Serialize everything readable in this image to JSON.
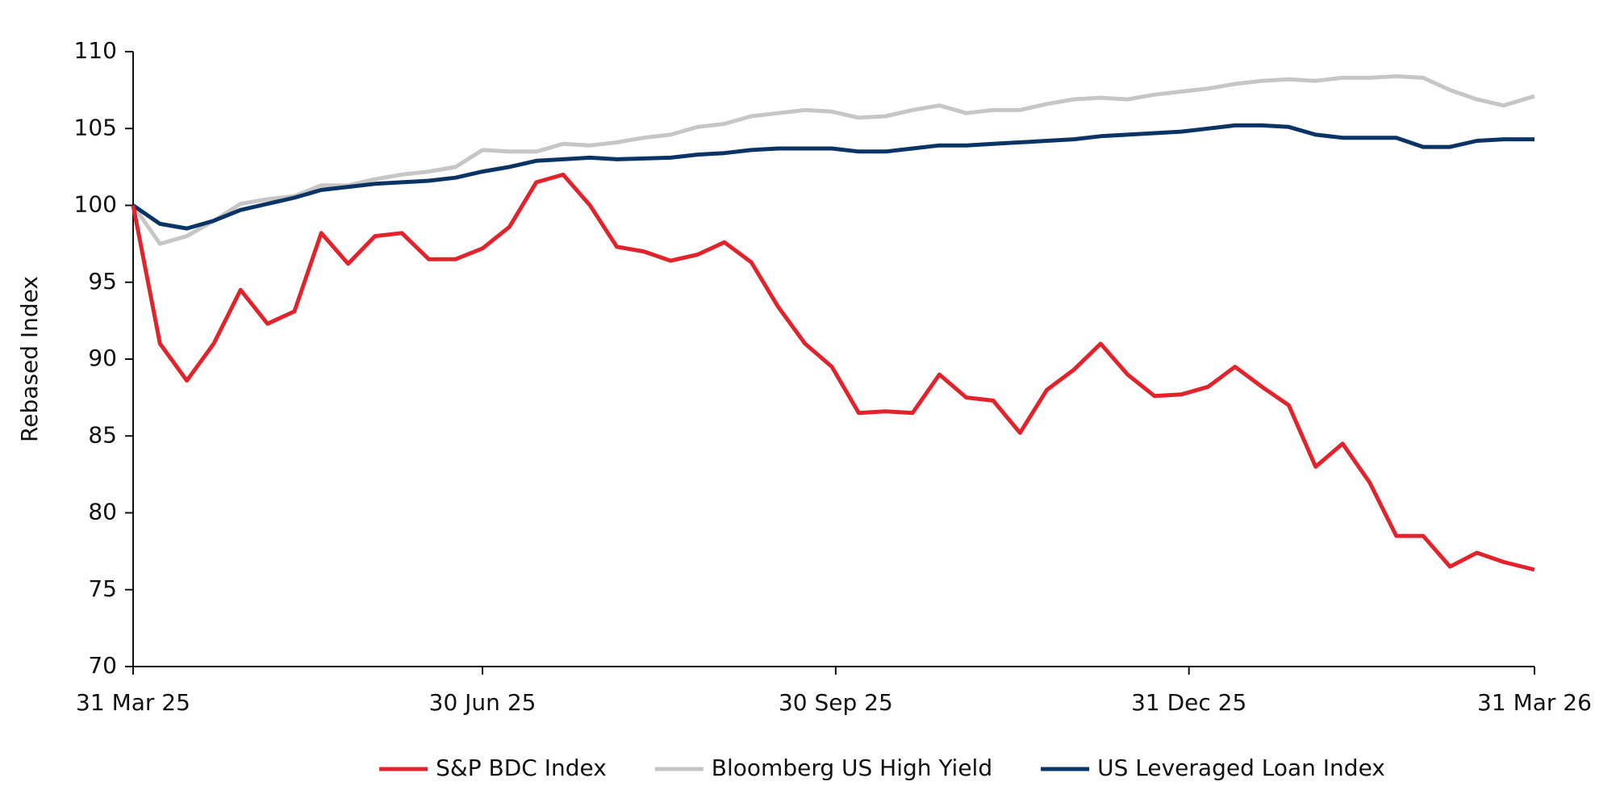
{
  "chart_data": {
    "type": "line",
    "y_label": "Rebased Index",
    "x": [
      "2025-03-31",
      "2025-04-07",
      "2025-04-14",
      "2025-04-21",
      "2025-04-28",
      "2025-05-05",
      "2025-05-12",
      "2025-05-19",
      "2025-05-26",
      "2025-06-02",
      "2025-06-09",
      "2025-06-16",
      "2025-06-23",
      "2025-06-30",
      "2025-07-07",
      "2025-07-14",
      "2025-07-21",
      "2025-07-28",
      "2025-08-04",
      "2025-08-11",
      "2025-08-18",
      "2025-08-25",
      "2025-09-01",
      "2025-09-08",
      "2025-09-15",
      "2025-09-22",
      "2025-09-29",
      "2025-10-06",
      "2025-10-13",
      "2025-10-20",
      "2025-10-27",
      "2025-11-03",
      "2025-11-10",
      "2025-11-17",
      "2025-11-24",
      "2025-12-01",
      "2025-12-08",
      "2025-12-15",
      "2025-12-22",
      "2025-12-29",
      "2026-01-05",
      "2026-01-12",
      "2026-01-19",
      "2026-01-26",
      "2026-02-02",
      "2026-02-09",
      "2026-02-16",
      "2026-02-23",
      "2026-03-02",
      "2026-03-09",
      "2026-03-16",
      "2026-03-23",
      "2026-03-31"
    ],
    "series": [
      {
        "name": "S&P BDC Index",
        "color": "#e3232c",
        "values": [
          100,
          91,
          88.6,
          91,
          94.5,
          92.3,
          93.1,
          98.2,
          96.2,
          98,
          98.2,
          96.5,
          96.5,
          97.2,
          98.6,
          101.5,
          102,
          100,
          97.3,
          97,
          96.4,
          96.8,
          97.6,
          96.3,
          93.4,
          91,
          89.5,
          86.5,
          86.6,
          86.5,
          89,
          87.5,
          87.3,
          85.2,
          88,
          89.3,
          91,
          89,
          87.6,
          87.7,
          88.2,
          89.5,
          88.2,
          87,
          83,
          84.5,
          82,
          78.5,
          78.5,
          76.5,
          77.4,
          76.8,
          76.3
        ]
      },
      {
        "name": "Bloomberg US High Yield",
        "color": "#c6c6c6",
        "values": [
          100,
          97.5,
          98,
          99,
          100.1,
          100.4,
          100.6,
          101.3,
          101.3,
          101.7,
          102,
          102.2,
          102.5,
          103.6,
          103.5,
          103.5,
          104,
          103.9,
          104.1,
          104.4,
          104.6,
          105.1,
          105.3,
          105.8,
          106,
          106.2,
          106.1,
          105.7,
          105.8,
          106.2,
          106.5,
          106,
          106.2,
          106.2,
          106.6,
          106.9,
          107,
          106.9,
          107.2,
          107.4,
          107.6,
          107.9,
          108.1,
          108.2,
          108.1,
          108.3,
          108.3,
          108.4,
          108.3,
          107.5,
          106.9,
          106.5,
          107.1
        ]
      },
      {
        "name": "US Leveraged Loan Index",
        "color": "#0b3466",
        "values": [
          100,
          98.8,
          98.5,
          99,
          99.7,
          100.1,
          100.5,
          101,
          101.2,
          101.4,
          101.5,
          101.6,
          101.8,
          102.2,
          102.5,
          102.9,
          103,
          103.1,
          103,
          103.05,
          103.1,
          103.3,
          103.4,
          103.6,
          103.7,
          103.7,
          103.7,
          103.5,
          103.5,
          103.7,
          103.9,
          103.9,
          104,
          104.1,
          104.2,
          104.3,
          104.5,
          104.6,
          104.7,
          104.8,
          105,
          105.2,
          105.2,
          105.1,
          104.6,
          104.4,
          104.4,
          104.4,
          103.8,
          103.8,
          104.2,
          104.3,
          104.3
        ]
      }
    ],
    "xlim": [
      "2025-03-31",
      "2026-03-31"
    ],
    "xticks": [
      {
        "value": "2025-03-31",
        "label": "31 Mar 25"
      },
      {
        "value": "2025-06-30",
        "label": "30 Jun 25"
      },
      {
        "value": "2025-09-30",
        "label": "30 Sep 25"
      },
      {
        "value": "2025-12-31",
        "label": "31 Dec 25"
      },
      {
        "value": "2026-03-31",
        "label": "31 Mar 26"
      }
    ],
    "ylim": [
      70,
      110
    ],
    "yticks": [
      70,
      75,
      80,
      85,
      90,
      95,
      100,
      105,
      110
    ],
    "grid": false,
    "legend": "bottom"
  }
}
